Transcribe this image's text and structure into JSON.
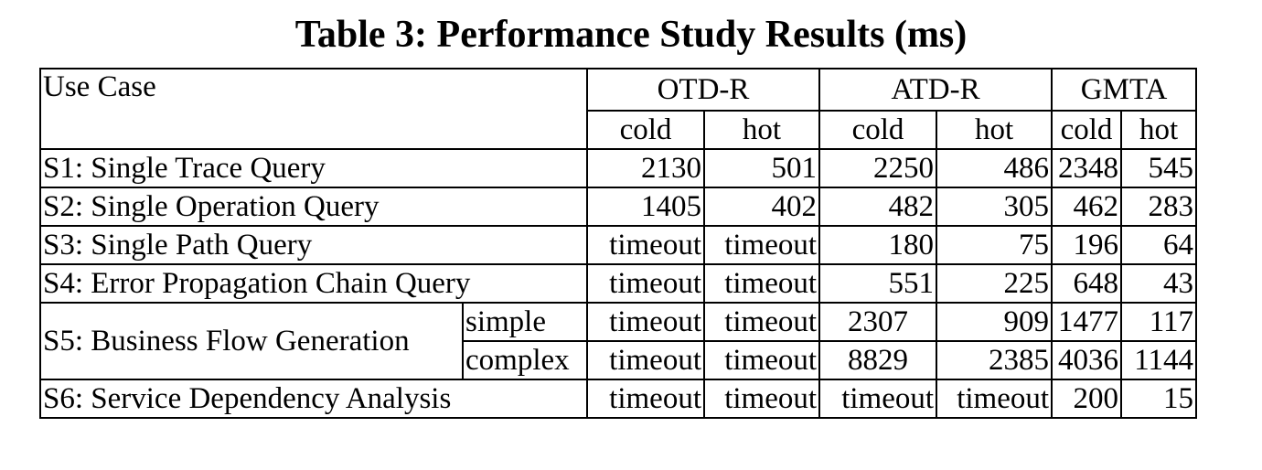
{
  "caption": "Table 3: Performance Study Results (ms)",
  "header": {
    "use_case": "Use Case",
    "groups": [
      "OTD-R",
      "ATD-R",
      "GMTA"
    ],
    "sub": [
      "cold",
      "hot",
      "cold",
      "hot",
      "cold",
      "hot"
    ]
  },
  "rows": [
    {
      "label": "S1: Single Trace Query",
      "values": [
        "2130",
        "501",
        "2250",
        "486",
        "2348",
        "545"
      ]
    },
    {
      "label": "S2: Single Operation Query",
      "values": [
        "1405",
        "402",
        "482",
        "305",
        "462",
        "283"
      ]
    },
    {
      "label": "S3: Single Path Query",
      "values": [
        "timeout",
        "timeout",
        "180",
        "75",
        "196",
        "64"
      ]
    },
    {
      "label": "S4: Error Propagation Chain Query",
      "values": [
        "timeout",
        "timeout",
        "551",
        "225",
        "648",
        "43"
      ]
    },
    {
      "label": "S5: Business Flow Generation",
      "sub": [
        {
          "label": "simple",
          "values": [
            "timeout",
            "timeout",
            "2307",
            "909",
            "1477",
            "117"
          ]
        },
        {
          "label": "complex",
          "values": [
            "timeout",
            "timeout",
            "8829",
            "2385",
            "4036",
            "1144"
          ]
        }
      ]
    },
    {
      "label": "S6: Service Dependency Analysis",
      "values": [
        "timeout",
        "timeout",
        "timeout",
        "timeout",
        "200",
        "15"
      ]
    }
  ]
}
